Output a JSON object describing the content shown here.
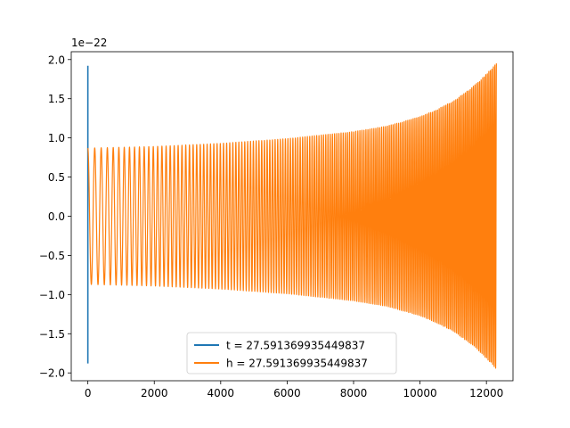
{
  "chart_data": {
    "type": "line",
    "title": "",
    "xlabel": "",
    "ylabel": "",
    "offset_label": "1e−22",
    "xlim": [
      -500,
      12800
    ],
    "ylim": [
      -2.1,
      2.1
    ],
    "xticks": [
      0,
      2000,
      4000,
      6000,
      8000,
      10000,
      12000
    ],
    "xtick_labels": [
      "0",
      "2000",
      "4000",
      "6000",
      "8000",
      "10000",
      "12000"
    ],
    "yticks": [
      -2.0,
      -1.5,
      -1.0,
      -0.5,
      0.0,
      0.5,
      1.0,
      1.5,
      2.0
    ],
    "ytick_labels": [
      "−2.0",
      "−1.5",
      "−1.0",
      "−0.5",
      "0.0",
      "0.5",
      "1.0",
      "1.5",
      "2.0"
    ],
    "grid": false,
    "legend_position": "lower-center",
    "series": [
      {
        "name": "t = 27.591369935449837",
        "color": "#1f77b4",
        "description": "vertical spike at x = 0",
        "x": [
          0,
          0
        ],
        "y": [
          1.92,
          -1.88
        ]
      },
      {
        "name": "h = 27.591369935449837",
        "color": "#ff7f0e",
        "description": "chirp oscillation whose envelope grows toward the end",
        "x_start": 0,
        "x_end": 12300,
        "envelope": {
          "x": [
            0,
            2000,
            4000,
            6000,
            8000,
            9000,
            10000,
            10500,
            11000,
            11500,
            11800,
            12100,
            12300
          ],
          "amplitude": [
            0.87,
            0.89,
            0.93,
            0.99,
            1.08,
            1.15,
            1.27,
            1.36,
            1.47,
            1.62,
            1.73,
            1.86,
            1.95
          ]
        },
        "cycles": 165
      }
    ]
  }
}
